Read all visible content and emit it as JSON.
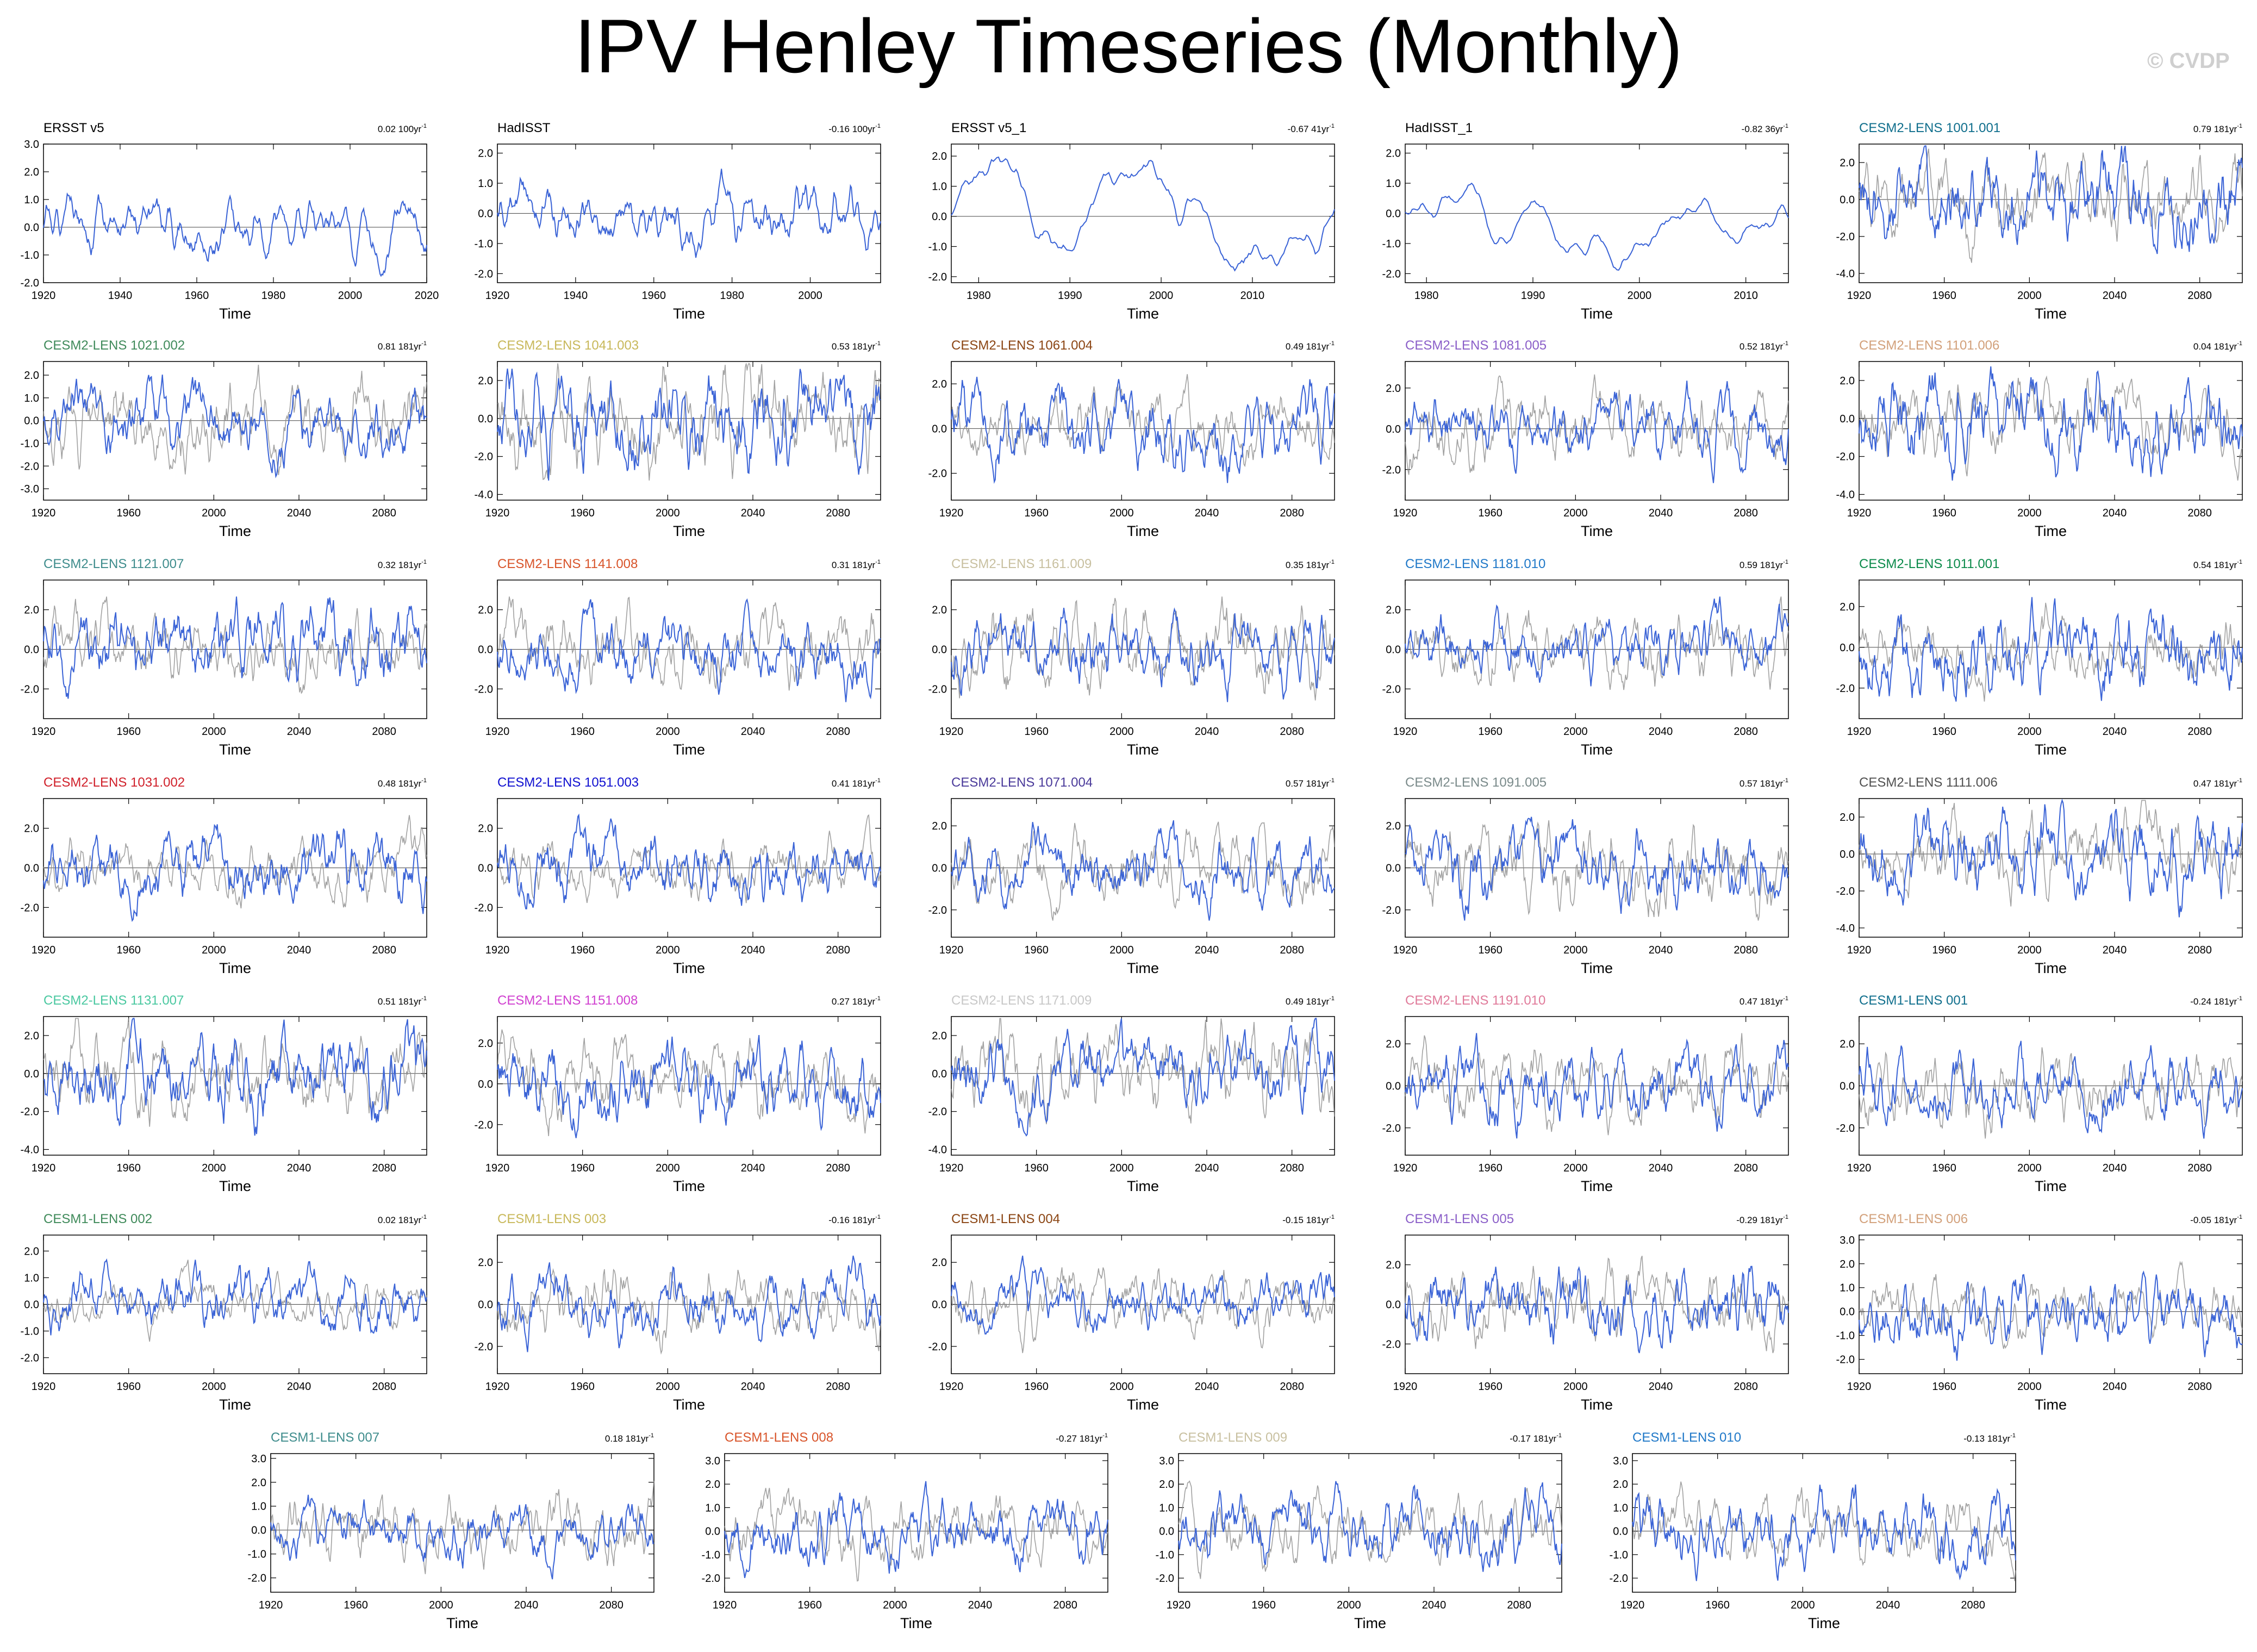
{
  "title": "IPV Henley Timeseries (Monthly)",
  "watermark": "© CVDP",
  "axis_label": "Time",
  "colors": {
    "model_line": "#3a63d6",
    "obs_gray": "#8a8a8a",
    "axis": "#000000"
  },
  "chart_data": [
    {
      "type": "line",
      "label": "ERSST v5",
      "label_color": "#000000",
      "trend": "0.02 100yr",
      "x_range": [
        1920,
        2020
      ],
      "x_ticks": [
        1920,
        1940,
        1960,
        1980,
        2000,
        2020
      ],
      "y_ticks": [
        "3.0",
        "2.0",
        "1.0",
        "0.0",
        "-1.0",
        "-2.0"
      ],
      "ylim": [
        -2,
        3
      ],
      "seed": 1,
      "amp": 1.0,
      "style": "obs"
    },
    {
      "type": "line",
      "label": "HadISST",
      "label_color": "#000000",
      "trend": "-0.16 100yr",
      "x_range": [
        1920,
        2018
      ],
      "x_ticks": [
        1920,
        1940,
        1960,
        1980,
        2000
      ],
      "y_ticks": [
        "2.0",
        "1.0",
        "0.0",
        "-1.0",
        "-2.0"
      ],
      "ylim": [
        -2.3,
        2.3
      ],
      "seed": 2,
      "amp": 1.1,
      "style": "obs"
    },
    {
      "type": "line",
      "label": "ERSST v5_1",
      "label_color": "#000000",
      "trend": "-0.67 41yr",
      "x_range": [
        1977,
        2019
      ],
      "x_ticks": [
        1980,
        1990,
        2000,
        2010
      ],
      "y_ticks": [
        "2.0",
        "1.0",
        "0.0",
        "-1.0",
        "-2.0"
      ],
      "ylim": [
        -2.2,
        2.4
      ],
      "seed": 3,
      "amp": 1.4,
      "style": "smooth"
    },
    {
      "type": "line",
      "label": "HadISST_1",
      "label_color": "#000000",
      "trend": "-0.82 36yr",
      "x_range": [
        1978,
        2014
      ],
      "x_ticks": [
        1980,
        1990,
        2000,
        2010
      ],
      "y_ticks": [
        "2.0",
        "1.0",
        "0.0",
        "-1.0",
        "-2.0"
      ],
      "ylim": [
        -2.3,
        2.3
      ],
      "seed": 4,
      "amp": 1.4,
      "style": "smooth"
    },
    {
      "type": "line",
      "label": "CESM2-LENS 1001.001",
      "label_color": "#0f6e8c",
      "trend": "0.79 181yr",
      "x_range": [
        1920,
        2100
      ],
      "x_ticks": [
        1920,
        1960,
        2000,
        2040,
        2080
      ],
      "y_ticks": [
        "2.0",
        "0.0",
        "-2.0",
        "-4.0"
      ],
      "ylim": [
        -4.5,
        3
      ],
      "seed": 5,
      "amp": 1.3,
      "style": "model"
    },
    {
      "type": "line",
      "label": "CESM2-LENS 1021.002",
      "label_color": "#3f8a5a",
      "trend": "0.81 181yr",
      "x_range": [
        1920,
        2100
      ],
      "x_ticks": [
        1920,
        1960,
        2000,
        2040,
        2080
      ],
      "y_ticks": [
        "2.0",
        "1.0",
        "0.0",
        "-1.0",
        "-2.0",
        "-3.0"
      ],
      "ylim": [
        -3.5,
        2.6
      ],
      "seed": 6,
      "amp": 1.2,
      "style": "model"
    },
    {
      "type": "line",
      "label": "CESM2-LENS 1041.003",
      "label_color": "#c8b85a",
      "trend": "0.53 181yr",
      "x_range": [
        1920,
        2100
      ],
      "x_ticks": [
        1920,
        1960,
        2000,
        2040,
        2080
      ],
      "y_ticks": [
        "2.0",
        "0.0",
        "-2.0",
        "-4.0"
      ],
      "ylim": [
        -4.3,
        3
      ],
      "seed": 7,
      "amp": 1.3,
      "style": "model"
    },
    {
      "type": "line",
      "label": "CESM2-LENS 1061.004",
      "label_color": "#8b4513",
      "trend": "0.49 181yr",
      "x_range": [
        1920,
        2100
      ],
      "x_ticks": [
        1920,
        1960,
        2000,
        2040,
        2080
      ],
      "y_ticks": [
        "2.0",
        "0.0",
        "-2.0"
      ],
      "ylim": [
        -3.2,
        3
      ],
      "seed": 8,
      "amp": 1.3,
      "style": "model"
    },
    {
      "type": "line",
      "label": "CESM2-LENS 1081.005",
      "label_color": "#8a5ec8",
      "trend": "0.52 181yr",
      "x_range": [
        1920,
        2100
      ],
      "x_ticks": [
        1920,
        1960,
        2000,
        2040,
        2080
      ],
      "y_ticks": [
        "2.0",
        "0.0",
        "-2.0"
      ],
      "ylim": [
        -3.5,
        3.3
      ],
      "seed": 9,
      "amp": 1.3,
      "style": "model"
    },
    {
      "type": "line",
      "label": "CESM2-LENS 1101.006",
      "label_color": "#d2a07a",
      "trend": "0.04 181yr",
      "x_range": [
        1920,
        2100
      ],
      "x_ticks": [
        1920,
        1960,
        2000,
        2040,
        2080
      ],
      "y_ticks": [
        "2.0",
        "0.0",
        "-2.0",
        "-4.0"
      ],
      "ylim": [
        -4.3,
        3
      ],
      "seed": 10,
      "amp": 1.3,
      "style": "model"
    },
    {
      "type": "line",
      "label": "CESM2-LENS 1121.007",
      "label_color": "#3e8c8c",
      "trend": "0.32 181yr",
      "x_range": [
        1920,
        2100
      ],
      "x_ticks": [
        1920,
        1960,
        2000,
        2040,
        2080
      ],
      "y_ticks": [
        "2.0",
        "0.0",
        "-2.0"
      ],
      "ylim": [
        -3.5,
        3.5
      ],
      "seed": 11,
      "amp": 1.3,
      "style": "model"
    },
    {
      "type": "line",
      "label": "CESM2-LENS 1141.008",
      "label_color": "#d8542a",
      "trend": "0.31 181yr",
      "x_range": [
        1920,
        2100
      ],
      "x_ticks": [
        1920,
        1960,
        2000,
        2040,
        2080
      ],
      "y_ticks": [
        "2.0",
        "0.0",
        "-2.0"
      ],
      "ylim": [
        -3.5,
        3.5
      ],
      "seed": 12,
      "amp": 1.3,
      "style": "model"
    },
    {
      "type": "line",
      "label": "CESM2-LENS 1161.009",
      "label_color": "#c8c0a0",
      "trend": "0.35 181yr",
      "x_range": [
        1920,
        2100
      ],
      "x_ticks": [
        1920,
        1960,
        2000,
        2040,
        2080
      ],
      "y_ticks": [
        "2.0",
        "0.0",
        "-2.0"
      ],
      "ylim": [
        -3.5,
        3.5
      ],
      "seed": 13,
      "amp": 1.3,
      "style": "model"
    },
    {
      "type": "line",
      "label": "CESM2-LENS 1181.010",
      "label_color": "#1f78c8",
      "trend": "0.59 181yr",
      "x_range": [
        1920,
        2100
      ],
      "x_ticks": [
        1920,
        1960,
        2000,
        2040,
        2080
      ],
      "y_ticks": [
        "2.0",
        "0.0",
        "-2.0"
      ],
      "ylim": [
        -3.5,
        3.5
      ],
      "seed": 14,
      "amp": 1.3,
      "style": "model"
    },
    {
      "type": "line",
      "label": "CESM2-LENS 1011.001",
      "label_color": "#0a8a4a",
      "trend": "0.54 181yr",
      "x_range": [
        1920,
        2100
      ],
      "x_ticks": [
        1920,
        1960,
        2000,
        2040,
        2080
      ],
      "y_ticks": [
        "2.0",
        "0.0",
        "-2.0"
      ],
      "ylim": [
        -3.5,
        3.3
      ],
      "seed": 15,
      "amp": 1.3,
      "style": "model"
    },
    {
      "type": "line",
      "label": "CESM2-LENS 1031.002",
      "label_color": "#d0202a",
      "trend": "0.48 181yr",
      "x_range": [
        1920,
        2100
      ],
      "x_ticks": [
        1920,
        1960,
        2000,
        2040,
        2080
      ],
      "y_ticks": [
        "2.0",
        "0.0",
        "-2.0"
      ],
      "ylim": [
        -3.5,
        3.5
      ],
      "seed": 16,
      "amp": 1.3,
      "style": "model"
    },
    {
      "type": "line",
      "label": "CESM2-LENS 1051.003",
      "label_color": "#1010d0",
      "trend": "0.41 181yr",
      "x_range": [
        1920,
        2100
      ],
      "x_ticks": [
        1920,
        1960,
        2000,
        2040,
        2080
      ],
      "y_ticks": [
        "2.0",
        "0.0",
        "-2.0"
      ],
      "ylim": [
        -3.5,
        3.5
      ],
      "seed": 17,
      "amp": 1.3,
      "style": "model"
    },
    {
      "type": "line",
      "label": "CESM2-LENS 1071.004",
      "label_color": "#4a3a9a",
      "trend": "0.57 181yr",
      "x_range": [
        1920,
        2100
      ],
      "x_ticks": [
        1920,
        1960,
        2000,
        2040,
        2080
      ],
      "y_ticks": [
        "2.0",
        "0.0",
        "-2.0"
      ],
      "ylim": [
        -3.3,
        3.3
      ],
      "seed": 18,
      "amp": 1.3,
      "style": "model"
    },
    {
      "type": "line",
      "label": "CESM2-LENS 1091.005",
      "label_color": "#7a8a8a",
      "trend": "0.57 181yr",
      "x_range": [
        1920,
        2100
      ],
      "x_ticks": [
        1920,
        1960,
        2000,
        2040,
        2080
      ],
      "y_ticks": [
        "2.0",
        "0.0",
        "-2.0"
      ],
      "ylim": [
        -3.3,
        3.3
      ],
      "seed": 19,
      "amp": 1.3,
      "style": "model"
    },
    {
      "type": "line",
      "label": "CESM2-LENS 1111.006",
      "label_color": "#505050",
      "trend": "0.47 181yr",
      "x_range": [
        1920,
        2100
      ],
      "x_ticks": [
        1920,
        1960,
        2000,
        2040,
        2080
      ],
      "y_ticks": [
        "2.0",
        "0.0",
        "-2.0",
        "-4.0"
      ],
      "ylim": [
        -4.5,
        3
      ],
      "seed": 20,
      "amp": 1.3,
      "style": "model"
    },
    {
      "type": "line",
      "label": "CESM2-LENS 1131.007",
      "label_color": "#4ac8a0",
      "trend": "0.51 181yr",
      "x_range": [
        1920,
        2100
      ],
      "x_ticks": [
        1920,
        1960,
        2000,
        2040,
        2080
      ],
      "y_ticks": [
        "2.0",
        "0.0",
        "-2.0",
        "-4.0"
      ],
      "ylim": [
        -4.3,
        3
      ],
      "seed": 21,
      "amp": 1.3,
      "style": "model"
    },
    {
      "type": "line",
      "label": "CESM2-LENS 1151.008",
      "label_color": "#d040d0",
      "trend": "0.27 181yr",
      "x_range": [
        1920,
        2100
      ],
      "x_ticks": [
        1920,
        1960,
        2000,
        2040,
        2080
      ],
      "y_ticks": [
        "2.0",
        "0.0",
        "-2.0"
      ],
      "ylim": [
        -3.5,
        3.3
      ],
      "seed": 22,
      "amp": 1.3,
      "style": "model"
    },
    {
      "type": "line",
      "label": "CESM2-LENS 1171.009",
      "label_color": "#c8c8c8",
      "trend": "0.49 181yr",
      "x_range": [
        1920,
        2100
      ],
      "x_ticks": [
        1920,
        1960,
        2000,
        2040,
        2080
      ],
      "y_ticks": [
        "2.0",
        "0.0",
        "-2.0",
        "-4.0"
      ],
      "ylim": [
        -4.3,
        3
      ],
      "seed": 23,
      "amp": 1.3,
      "style": "model"
    },
    {
      "type": "line",
      "label": "CESM2-LENS 1191.010",
      "label_color": "#e07a9a",
      "trend": "0.47 181yr",
      "x_range": [
        1920,
        2100
      ],
      "x_ticks": [
        1920,
        1960,
        2000,
        2040,
        2080
      ],
      "y_ticks": [
        "2.0",
        "0.0",
        "-2.0"
      ],
      "ylim": [
        -3.3,
        3.3
      ],
      "seed": 24,
      "amp": 1.3,
      "style": "model"
    },
    {
      "type": "line",
      "label": "CESM1-LENS 001",
      "label_color": "#0f6e8c",
      "trend": "-0.24 181yr",
      "x_range": [
        1920,
        2100
      ],
      "x_ticks": [
        1920,
        1960,
        2000,
        2040,
        2080
      ],
      "y_ticks": [
        "2.0",
        "0.0",
        "-2.0"
      ],
      "ylim": [
        -3.3,
        3.3
      ],
      "seed": 25,
      "amp": 1.3,
      "style": "model"
    },
    {
      "type": "line",
      "label": "CESM1-LENS 002",
      "label_color": "#3f8a5a",
      "trend": "0.02 181yr",
      "x_range": [
        1920,
        2100
      ],
      "x_ticks": [
        1920,
        1960,
        2000,
        2040,
        2080
      ],
      "y_ticks": [
        "2.0",
        "1.0",
        "0.0",
        "-1.0",
        "-2.0"
      ],
      "ylim": [
        -2.6,
        2.6
      ],
      "seed": 26,
      "amp": 1.1,
      "style": "model"
    },
    {
      "type": "line",
      "label": "CESM1-LENS 003",
      "label_color": "#c8b85a",
      "trend": "-0.16 181yr",
      "x_range": [
        1920,
        2100
      ],
      "x_ticks": [
        1920,
        1960,
        2000,
        2040,
        2080
      ],
      "y_ticks": [
        "2.0",
        "0.0",
        "-2.0"
      ],
      "ylim": [
        -3.3,
        3.3
      ],
      "seed": 27,
      "amp": 1.2,
      "style": "model"
    },
    {
      "type": "line",
      "label": "CESM1-LENS 004",
      "label_color": "#8b4513",
      "trend": "-0.15 181yr",
      "x_range": [
        1920,
        2100
      ],
      "x_ticks": [
        1920,
        1960,
        2000,
        2040,
        2080
      ],
      "y_ticks": [
        "2.0",
        "0.0",
        "-2.0"
      ],
      "ylim": [
        -3.3,
        3.3
      ],
      "seed": 28,
      "amp": 1.2,
      "style": "model"
    },
    {
      "type": "line",
      "label": "CESM1-LENS 005",
      "label_color": "#8a5ec8",
      "trend": "-0.29 181yr",
      "x_range": [
        1920,
        2100
      ],
      "x_ticks": [
        1920,
        1960,
        2000,
        2040,
        2080
      ],
      "y_ticks": [
        "2.0",
        "0.0",
        "-2.0"
      ],
      "ylim": [
        -3.5,
        3.5
      ],
      "seed": 29,
      "amp": 1.2,
      "style": "model"
    },
    {
      "type": "line",
      "label": "CESM1-LENS 006",
      "label_color": "#d2a07a",
      "trend": "-0.05 181yr",
      "x_range": [
        1920,
        2100
      ],
      "x_ticks": [
        1920,
        1960,
        2000,
        2040,
        2080
      ],
      "y_ticks": [
        "3.0",
        "2.0",
        "1.0",
        "0.0",
        "-1.0",
        "-2.0"
      ],
      "ylim": [
        -2.6,
        3.2
      ],
      "seed": 30,
      "amp": 1.1,
      "style": "model"
    },
    {
      "type": "line",
      "label": "CESM1-LENS 007",
      "label_color": "#3e8c8c",
      "trend": "0.18 181yr",
      "x_range": [
        1920,
        2100
      ],
      "x_ticks": [
        1920,
        1960,
        2000,
        2040,
        2080
      ],
      "y_ticks": [
        "3.0",
        "2.0",
        "1.0",
        "0.0",
        "-1.0",
        "-2.0"
      ],
      "ylim": [
        -2.6,
        3.2
      ],
      "seed": 31,
      "amp": 1.1,
      "style": "model"
    },
    {
      "type": "line",
      "label": "CESM1-LENS 008",
      "label_color": "#d8542a",
      "trend": "-0.27 181yr",
      "x_range": [
        1920,
        2100
      ],
      "x_ticks": [
        1920,
        1960,
        2000,
        2040,
        2080
      ],
      "y_ticks": [
        "3.0",
        "2.0",
        "1.0",
        "0.0",
        "-1.0",
        "-2.0"
      ],
      "ylim": [
        -2.6,
        3.3
      ],
      "seed": 32,
      "amp": 1.1,
      "style": "model"
    },
    {
      "type": "line",
      "label": "CESM1-LENS 009",
      "label_color": "#c8c0a0",
      "trend": "-0.17 181yr",
      "x_range": [
        1920,
        2100
      ],
      "x_ticks": [
        1920,
        1960,
        2000,
        2040,
        2080
      ],
      "y_ticks": [
        "3.0",
        "2.0",
        "1.0",
        "0.0",
        "-1.0",
        "-2.0"
      ],
      "ylim": [
        -2.6,
        3.3
      ],
      "seed": 33,
      "amp": 1.1,
      "style": "model"
    },
    {
      "type": "line",
      "label": "CESM1-LENS 010",
      "label_color": "#1f78c8",
      "trend": "-0.13 181yr",
      "x_range": [
        1920,
        2100
      ],
      "x_ticks": [
        1920,
        1960,
        2000,
        2040,
        2080
      ],
      "y_ticks": [
        "3.0",
        "2.0",
        "1.0",
        "0.0",
        "-1.0",
        "-2.0"
      ],
      "ylim": [
        -2.6,
        3.3
      ],
      "seed": 34,
      "amp": 1.1,
      "style": "model"
    }
  ]
}
